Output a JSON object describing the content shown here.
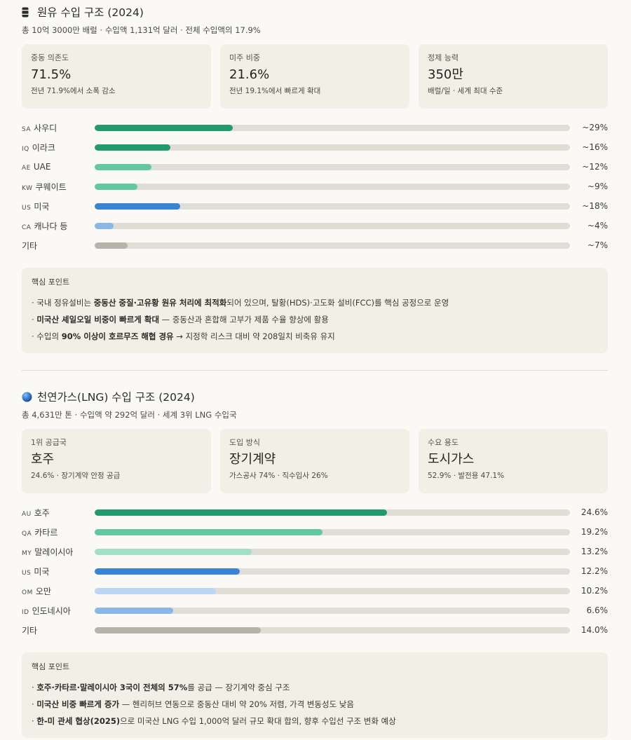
{
  "oil": {
    "icon": "oil-barrel-icon",
    "title": "원유 수입 구조 (2024)",
    "subtitle": "총 10억 3000만 배럴 · 수입액 1,131억 달러 · 전체 수입액의 17.9%",
    "cards": [
      {
        "label": "중동 의존도",
        "value": "71.5%",
        "note": "전년 71.9%에서 소폭 감소"
      },
      {
        "label": "미주 비중",
        "value": "21.6%",
        "note": "전년 19.1%에서 빠르게 확대"
      },
      {
        "label": "정제 능력",
        "value": "350만",
        "note": "배럴/일 · 세계 최대 수준"
      }
    ],
    "insight_title": "핵심 포인트",
    "insights": [
      [
        {
          "t": "· 국내 정유설비는 "
        },
        {
          "t": "중동산 중질·고유황 원유 처리에 최적화",
          "b": true
        },
        {
          "t": "되어 있으며, 탈황(HDS)·고도화 설비(FCC)를 핵심 공정으로 운영"
        }
      ],
      [
        {
          "t": "· "
        },
        {
          "t": "미국산 셰일오일 비중이 빠르게 확대",
          "b": true
        },
        {
          "t": " — 중동산과 혼합해 고부가 제품 수율 향상에 활용"
        }
      ],
      [
        {
          "t": "· 수입의 "
        },
        {
          "t": "90% 이상이 호르무즈 해협 경유",
          "b": true
        },
        {
          "t": " → 지정학 리스크 대비 약 208일치 비축유 유지"
        }
      ]
    ]
  },
  "lng": {
    "icon": "globe-icon",
    "title": "천연가스(LNG) 수입 구조 (2024)",
    "subtitle": "총 4,631만 톤 · 수입액 약 292억 달러 · 세계 3위 LNG 수입국",
    "cards": [
      {
        "label": "1위 공급국",
        "value": "호주",
        "note": "24.6% · 장기계약 안정 공급"
      },
      {
        "label": "도입 방식",
        "value": "장기계약",
        "note": "가스공사 74% · 직수입사 26%"
      },
      {
        "label": "수요 용도",
        "value": "도시가스",
        "note": "52.9% · 발전용 47.1%"
      }
    ],
    "insight_title": "핵심 포인트",
    "insights": [
      [
        {
          "t": "· "
        },
        {
          "t": "호주·카타르·말레이시아 3국이 전체의 57%",
          "b": true
        },
        {
          "t": "를 공급 — 장기계약 중심 구조"
        }
      ],
      [
        {
          "t": "· "
        },
        {
          "t": "미국산 비중 빠르게 증가",
          "b": true
        },
        {
          "t": " — 헨리허브 연동으로 중동산 대비 약 20% 저렴, 가격 변동성도 낮음"
        }
      ],
      [
        {
          "t": "· "
        },
        {
          "t": "한-미 관세 협상(2025)",
          "b": true
        },
        {
          "t": "으로 미국산 LNG 수입 1,000억 달러 규모 확대 합의, 향후 수입선 구조 변화 예상"
        }
      ]
    ]
  },
  "chart_data": [
    {
      "type": "bar",
      "orientation": "horizontal",
      "title": "원유 수입 구조 (2024)",
      "unit": "%",
      "xlim": [
        0,
        100
      ],
      "categories": [
        "사우디",
        "이라크",
        "UAE",
        "쿠웨이트",
        "미국",
        "캐나다 등",
        "기타"
      ],
      "codes": [
        "SA",
        "IQ",
        "AE",
        "KW",
        "US",
        "CA",
        ""
      ],
      "values": [
        29,
        16,
        12,
        9,
        18,
        4,
        7
      ],
      "value_labels": [
        "~29%",
        "~16%",
        "~12%",
        "~9%",
        "~18%",
        "~4%",
        "~7%"
      ],
      "colors": [
        "#239a6e",
        "#239a6e",
        "#63c8a2",
        "#63c8a2",
        "#3a84d5",
        "#8bb6e8",
        "#b6b3ab"
      ]
    },
    {
      "type": "bar",
      "orientation": "horizontal",
      "title": "천연가스(LNG) 수입 구조 (2024)",
      "unit": "%",
      "xlim": [
        0,
        40
      ],
      "categories": [
        "호주",
        "카타르",
        "말레이시아",
        "미국",
        "오만",
        "인도네시아",
        "기타"
      ],
      "codes": [
        "AU",
        "QA",
        "MY",
        "US",
        "OM",
        "ID",
        ""
      ],
      "values": [
        24.6,
        19.2,
        13.2,
        12.2,
        10.2,
        6.6,
        14.0
      ],
      "value_labels": [
        "24.6%",
        "19.2%",
        "13.2%",
        "12.2%",
        "10.2%",
        "6.6%",
        "14.0%"
      ],
      "colors": [
        "#239a6e",
        "#63c8a2",
        "#a3dec6",
        "#3a84d5",
        "#bcd6f3",
        "#8bb6e8",
        "#b6b3ab"
      ]
    }
  ]
}
